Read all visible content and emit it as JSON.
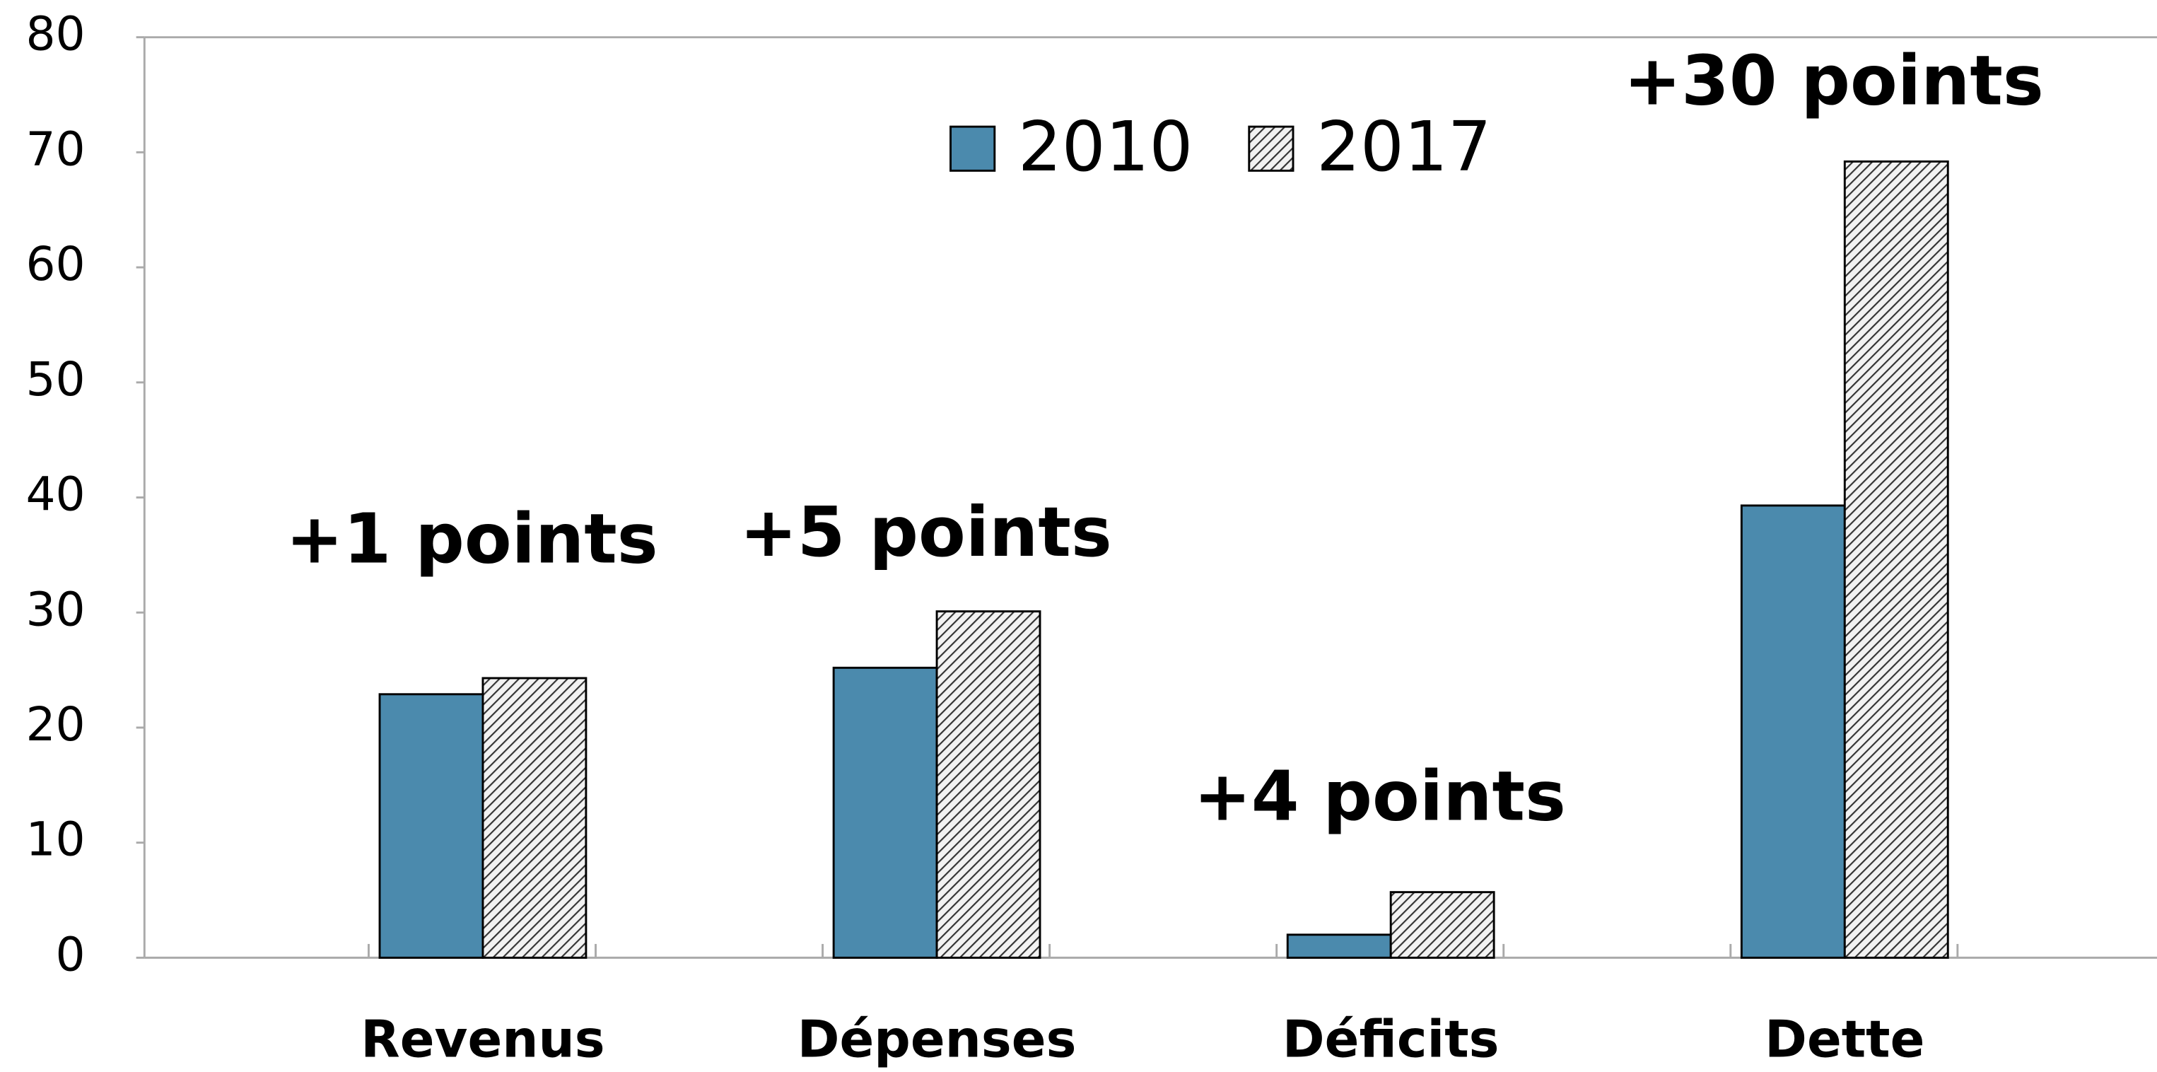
{
  "chart_data": {
    "type": "bar",
    "categories": [
      "Revenus",
      "Dépenses",
      "Déficits",
      "Dette"
    ],
    "series": [
      {
        "name": "2010",
        "color": "#4b8aad",
        "values": [
          22.9,
          25.2,
          2.0,
          39.3
        ]
      },
      {
        "name": "2017",
        "color": "#333333",
        "pattern": "diagonal-hatch",
        "values": [
          24.3,
          30.1,
          5.7,
          69.2
        ]
      }
    ],
    "annotations": [
      "+1 points",
      "+5 points",
      "+4 points",
      "+30 points"
    ],
    "ylim": [
      0,
      80
    ],
    "yticks": [
      0,
      10,
      20,
      30,
      40,
      50,
      60,
      70,
      80
    ],
    "grid": false,
    "legend": "top"
  }
}
